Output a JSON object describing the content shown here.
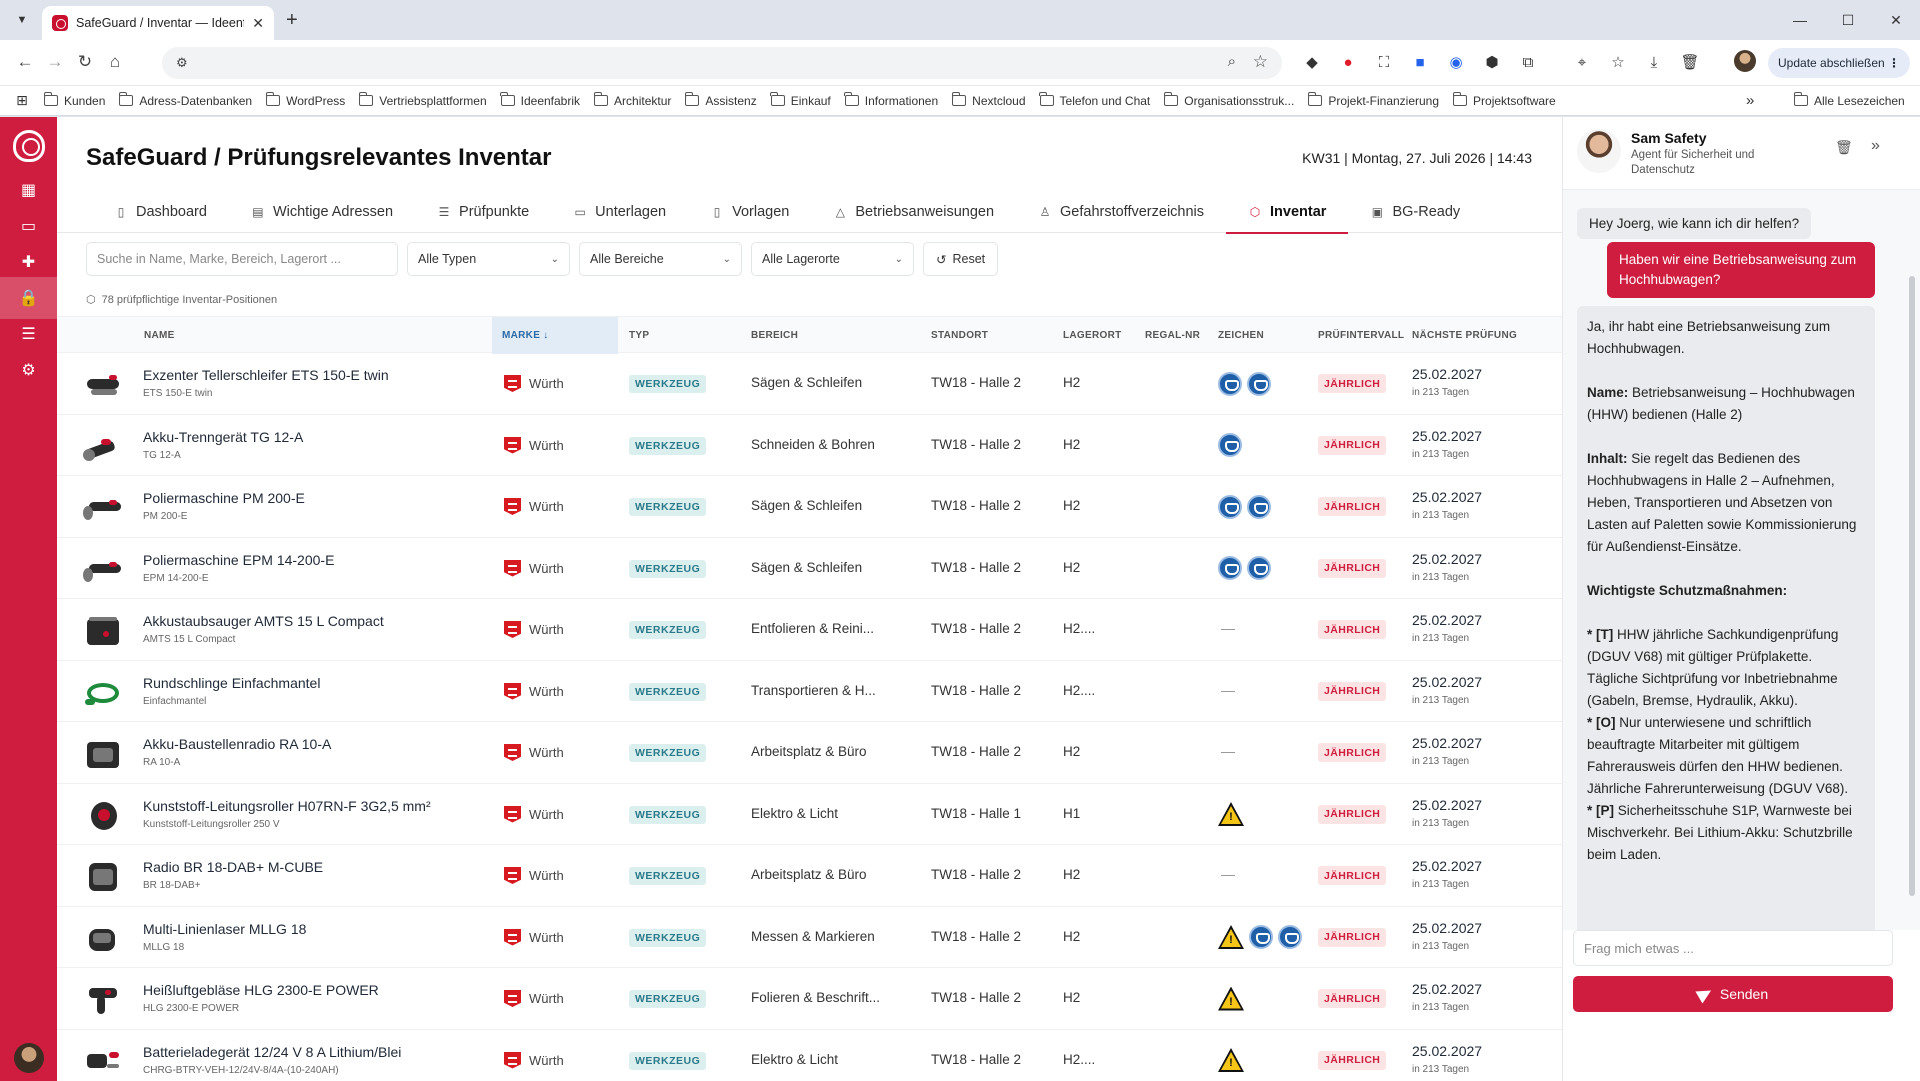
{
  "browser": {
    "tab_title": "SafeGuard / Inventar — Ideenfa",
    "update_label": "Update abschließen",
    "bookmarks": [
      "Kunden",
      "Adress-Datenbanken",
      "WordPress",
      "Vertriebsplattformen",
      "Ideenfabrik",
      "Architektur",
      "Assistenz",
      "Einkauf",
      "Informationen",
      "Nextcloud",
      "Telefon und Chat",
      "Organisationsstruk...",
      "Projekt-Finanzierung",
      "Projektsoftware"
    ],
    "all_bookmarks": "Alle Lesezeichen"
  },
  "page": {
    "title": "SafeGuard / Prüfungsrelevantes Inventar",
    "date": "KW31 | Montag, 27. Juli 2026 | 14:43"
  },
  "tabs": [
    {
      "label": "Dashboard",
      "icon": "document-icon"
    },
    {
      "label": "Wichtige Adressen",
      "icon": "address-book-icon"
    },
    {
      "label": "Prüfpunkte",
      "icon": "checklist-icon"
    },
    {
      "label": "Unterlagen",
      "icon": "folder-icon"
    },
    {
      "label": "Vorlagen",
      "icon": "template-icon"
    },
    {
      "label": "Betriebsanweisungen",
      "icon": "warning-icon"
    },
    {
      "label": "Gefahrstoffverzeichnis",
      "icon": "hazmat-icon"
    },
    {
      "label": "Inventar",
      "icon": "box-icon",
      "active": true
    },
    {
      "label": "BG-Ready",
      "icon": "clipboard-icon"
    }
  ],
  "filters": {
    "search_placeholder": "Suche in Name, Marke, Bereich, Lagerort ...",
    "types": "Alle Typen",
    "areas": "Alle Bereiche",
    "locations": "Alle Lagerorte",
    "reset": "Reset"
  },
  "count_label": "78 prüfpflichtige Inventar-Positionen",
  "columns": {
    "name": "NAME",
    "marke": "MARKE ↓",
    "typ": "TYP",
    "bereich": "BEREICH",
    "standort": "STANDORT",
    "lagerort": "LAGERORT",
    "regal": "REGAL-NR",
    "zeichen": "ZEICHEN",
    "intervall": "PRÜFINTERVALL",
    "naechste": "NÄCHSTE PRÜFUNG"
  },
  "rows": [
    {
      "name": "Exzenter Tellerschleifer ETS 150-E twin",
      "sub": "ETS 150-E twin",
      "brand": "Würth",
      "type": "WERKZEUG",
      "area": "Sägen & Schleifen",
      "site": "TW18 - Halle 2",
      "store": "H2",
      "signs": [
        "ms",
        "ms"
      ],
      "interval": "JÄHRLICH",
      "next": "25.02.2027",
      "rel": "in 213 Tagen",
      "img": "sander"
    },
    {
      "name": "Akku-Trenngerät TG 12-A",
      "sub": "TG 12-A",
      "brand": "Würth",
      "type": "WERKZEUG",
      "area": "Schneiden & Bohren",
      "site": "TW18 - Halle 2",
      "store": "H2",
      "signs": [
        "ms"
      ],
      "interval": "JÄHRLICH",
      "next": "25.02.2027",
      "rel": "in 213 Tagen",
      "img": "cutter"
    },
    {
      "name": "Poliermaschine PM 200-E",
      "sub": "PM 200-E",
      "brand": "Würth",
      "type": "WERKZEUG",
      "area": "Sägen & Schleifen",
      "site": "TW18 - Halle 2",
      "store": "H2",
      "signs": [
        "ms",
        "ms"
      ],
      "interval": "JÄHRLICH",
      "next": "25.02.2027",
      "rel": "in 213 Tagen",
      "img": "polisher"
    },
    {
      "name": "Poliermaschine EPM 14-200-E",
      "sub": "EPM 14-200-E",
      "brand": "Würth",
      "type": "WERKZEUG",
      "area": "Sägen & Schleifen",
      "site": "TW18 - Halle 2",
      "store": "H2",
      "signs": [
        "ms",
        "ms"
      ],
      "interval": "JÄHRLICH",
      "next": "25.02.2027",
      "rel": "in 213 Tagen",
      "img": "polisher"
    },
    {
      "name": "Akkustaubsauger AMTS 15 L Compact",
      "sub": "AMTS 15 L Compact",
      "brand": "Würth",
      "type": "WERKZEUG",
      "area": "Entfolieren & Reini...",
      "site": "TW18 - Halle 2",
      "store": "H2....",
      "signs": [],
      "interval": "JÄHRLICH",
      "next": "25.02.2027",
      "rel": "in 213 Tagen",
      "img": "vacuum"
    },
    {
      "name": "Rundschlinge Einfachmantel",
      "sub": "Einfachmantel",
      "brand": "Würth",
      "type": "WERKZEUG",
      "area": "Transportieren & H...",
      "site": "TW18 - Halle 2",
      "store": "H2....",
      "signs": [],
      "interval": "JÄHRLICH",
      "next": "25.02.2027",
      "rel": "in 213 Tagen",
      "img": "sling"
    },
    {
      "name": "Akku-Baustellenradio RA 10-A",
      "sub": "RA 10-A",
      "brand": "Würth",
      "type": "WERKZEUG",
      "area": "Arbeitsplatz & Büro",
      "site": "TW18 - Halle 2",
      "store": "H2",
      "signs": [],
      "interval": "JÄHRLICH",
      "next": "25.02.2027",
      "rel": "in 213 Tagen",
      "img": "radio"
    },
    {
      "name": "Kunststoff-Leitungsroller H07RN-F 3G2,5 mm²",
      "sub": "Kunststoff-Leitungsroller 250 V",
      "brand": "Würth",
      "type": "WERKZEUG",
      "area": "Elektro & Licht",
      "site": "TW18 - Halle 1",
      "store": "H1",
      "signs": [
        "ws"
      ],
      "interval": "JÄHRLICH",
      "next": "25.02.2027",
      "rel": "in 213 Tagen",
      "img": "reel"
    },
    {
      "name": "Radio BR 18-DAB+ M-CUBE",
      "sub": "BR 18-DAB+",
      "brand": "Würth",
      "type": "WERKZEUG",
      "area": "Arbeitsplatz & Büro",
      "site": "TW18 - Halle 2",
      "store": "H2",
      "signs": [],
      "interval": "JÄHRLICH",
      "next": "25.02.2027",
      "rel": "in 213 Tagen",
      "img": "radio2"
    },
    {
      "name": "Multi-Linienlaser MLLG 18",
      "sub": "MLLG 18",
      "brand": "Würth",
      "type": "WERKZEUG",
      "area": "Messen & Markieren",
      "site": "TW18 - Halle 2",
      "store": "H2",
      "signs": [
        "ws",
        "ms",
        "ms"
      ],
      "interval": "JÄHRLICH",
      "next": "25.02.2027",
      "rel": "in 213 Tagen",
      "img": "laser"
    },
    {
      "name": "Heißluftgebläse HLG 2300-E POWER",
      "sub": "HLG 2300-E POWER",
      "brand": "Würth",
      "type": "WERKZEUG",
      "area": "Folieren & Beschrift...",
      "site": "TW18 - Halle 2",
      "store": "H2",
      "signs": [
        "ws"
      ],
      "interval": "JÄHRLICH",
      "next": "25.02.2027",
      "rel": "in 213 Tagen",
      "img": "heatgun"
    },
    {
      "name": "Batterieladegerät 12/24 V 8 A Lithium/Blei",
      "sub": "CHRG-BTRY-VEH-12/24V-8/4A-(10-240AH)",
      "brand": "Würth",
      "type": "WERKZEUG",
      "area": "Elektro & Licht",
      "site": "TW18 - Halle 2",
      "store": "H2....",
      "signs": [
        "ws"
      ],
      "interval": "JÄHRLICH",
      "next": "25.02.2027",
      "rel": "in 213 Tagen",
      "img": "charger"
    }
  ],
  "chat": {
    "name": "Sam Safety",
    "role": "Agent für Sicherheit und Datenschutz",
    "greeting": "Hey Joerg, wie kann ich dir helfen?",
    "user_msg": "Haben wir eine Betriebsanweisung zum Hochhubwagen?",
    "answer_intro": "Ja, ihr habt eine Betriebsanweisung zum Hochhubwagen.",
    "answer_name_label": "Name:",
    "answer_name": " Betriebsanweisung – Hochhubwagen (HHW) bedienen (Halle 2)",
    "answer_content_label": "Inhalt:",
    "answer_content": " Sie regelt das Bedienen des Hochhubwagens in Halle 2 – Aufnehmen, Heben, Transportieren und Absetzen von Lasten auf Paletten sowie Kommissionierung für Außendienst-Einsätze.",
    "answer_measures_title": "Wichtigste Schutzmaßnahmen:",
    "m1_label": "* [T]",
    "m1": " HHW jährliche Sachkundigenprüfung (DGUV V68) mit gültiger Prüfplakette. Tägliche Sichtprüfung vor Inbetriebnahme (Gabeln, Bremse, Hydraulik, Akku).",
    "m2_label": "* [O]",
    "m2": " Nur unterwiesene und schriftlich beauftragte Mitarbeiter mit gültigem Fahrerausweis dürfen den HHW bedienen. Jährliche Fahrerunterweisung (DGUV V68).",
    "m3_label": "* [P]",
    "m3": " Sicherheitsschuhe S1P, Warnweste bei Mischverkehr. Bei Lithium-Akku: Schutzbrille beim Laden.",
    "input_placeholder": "Frag mich etwas ...",
    "send_label": "Senden"
  }
}
